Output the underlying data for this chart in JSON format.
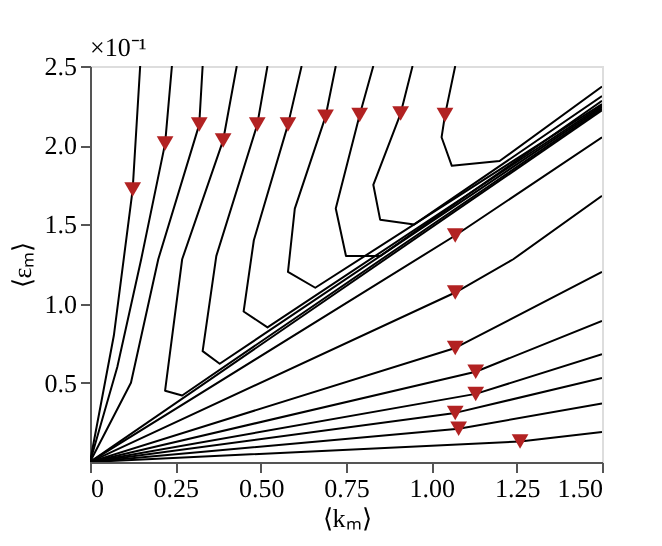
{
  "chart_data": {
    "type": "line",
    "xlabel": "⟨kₘ⟩",
    "ylabel": "⟨εₘ⟩",
    "annotations": [
      "×10⁻¹"
    ],
    "xlim": [
      0,
      1.5
    ],
    "ylim": [
      0,
      2.5
    ],
    "xticks": [
      0,
      0.25,
      {
        "value": 0.5,
        "label": "0.50"
      },
      0.75,
      {
        "value": 1,
        "label": "1.00"
      },
      1.25,
      {
        "value": 1.5,
        "label": "1.50"
      }
    ],
    "yticks": [
      0.5,
      {
        "value": 1,
        "label": "1.0"
      },
      1.5,
      {
        "value": 2,
        "label": "2.0"
      },
      2.5
    ],
    "grid": false,
    "line_style": "solid",
    "marker": "none",
    "series": [
      {
        "color": "#000000",
        "x": [
          0.147,
          0.125,
          0.07,
          0
        ],
        "values": [
          2.5,
          1.72,
          0.8,
          0
        ]
      },
      {
        "color": "#000000",
        "x": [
          0.24,
          0.22,
          0.15,
          0.08,
          0
        ],
        "values": [
          2.5,
          2.01,
          1.28,
          0.6,
          0
        ]
      },
      {
        "color": "#000000",
        "x": [
          0.33,
          0.32,
          0.2,
          0.12,
          0
        ],
        "values": [
          2.5,
          2.13,
          1.28,
          0.5,
          0
        ]
      },
      {
        "color": "#000000",
        "x": [
          0.43,
          0.39,
          0.27,
          0.22,
          0.27,
          1.5
        ],
        "values": [
          2.5,
          2.03,
          1.28,
          0.45,
          0.42,
          2.23
        ]
      },
      {
        "color": "#000000",
        "x": [
          0.52,
          0.49,
          0.37,
          0.33,
          0.38,
          1.5
        ],
        "values": [
          2.5,
          2.13,
          1.3,
          0.7,
          0.62,
          2.24
        ]
      },
      {
        "color": "#000000",
        "x": [
          0.62,
          0.58,
          0.48,
          0.45,
          0.52,
          1.5
        ],
        "values": [
          2.5,
          2.13,
          1.4,
          0.95,
          0.85,
          2.25
        ]
      },
      {
        "color": "#000000",
        "x": [
          0.72,
          0.69,
          0.6,
          0.58,
          0.66,
          1.5
        ],
        "values": [
          2.5,
          2.18,
          1.6,
          1.2,
          1.1,
          2.26
        ]
      },
      {
        "color": "#000000",
        "x": [
          0.83,
          0.79,
          0.72,
          0.75,
          0.85,
          1.5
        ],
        "values": [
          2.5,
          2.19,
          1.6,
          1.3,
          1.3,
          2.28
        ]
      },
      {
        "color": "#000000",
        "x": [
          0.945,
          0.91,
          0.83,
          0.85,
          0.95,
          1.5
        ],
        "values": [
          2.5,
          2.2,
          1.75,
          1.53,
          1.5,
          2.31
        ]
      },
      {
        "color": "#000000",
        "x": [
          1.07,
          1.04,
          1.03,
          1.06,
          1.2,
          1.5
        ],
        "values": [
          2.5,
          2.19,
          2.05,
          1.87,
          1.9,
          2.37
        ]
      },
      {
        "color": "#000000",
        "x": [
          0,
          1.5
        ],
        "values": [
          0,
          2.22
        ]
      },
      {
        "color": "#000000",
        "x": [
          0,
          1.07,
          1.5
        ],
        "values": [
          0,
          1.43,
          2.05
        ]
      },
      {
        "color": "#000000",
        "x": [
          0,
          1.07,
          1.24,
          1.5
        ],
        "values": [
          0,
          1.07,
          1.28,
          1.68
        ]
      },
      {
        "color": "#000000",
        "x": [
          0,
          1.07,
          1.5
        ],
        "values": [
          0,
          0.72,
          1.2
        ]
      },
      {
        "color": "#000000",
        "x": [
          0,
          1.13,
          1.5
        ],
        "values": [
          0,
          0.57,
          0.89
        ]
      },
      {
        "color": "#000000",
        "x": [
          0,
          1.13,
          1.5
        ],
        "values": [
          0,
          0.43,
          0.68
        ]
      },
      {
        "color": "#000000",
        "x": [
          0,
          1.07,
          1.5
        ],
        "values": [
          0,
          0.31,
          0.53
        ]
      },
      {
        "color": "#000000",
        "x": [
          0,
          1.08,
          1.5
        ],
        "values": [
          0,
          0.21,
          0.37
        ]
      },
      {
        "color": "#000000",
        "x": [
          0,
          1.26,
          1.5
        ],
        "values": [
          0,
          0.13,
          0.19
        ]
      },
      {
        "type": "scatter",
        "marker": "triangle",
        "color": "#b22222",
        "x": [
          0.125,
          0.22,
          0.32,
          0.39,
          0.49,
          0.58,
          0.69,
          0.79,
          0.91,
          1.04,
          1.07,
          1.07,
          1.07,
          1.13,
          1.13,
          1.07,
          1.08,
          1.26
        ],
        "values": [
          1.72,
          2.01,
          2.13,
          2.03,
          2.13,
          2.13,
          2.18,
          2.19,
          2.2,
          2.19,
          1.43,
          1.07,
          0.72,
          0.57,
          0.43,
          0.31,
          0.21,
          0.13
        ]
      }
    ]
  }
}
